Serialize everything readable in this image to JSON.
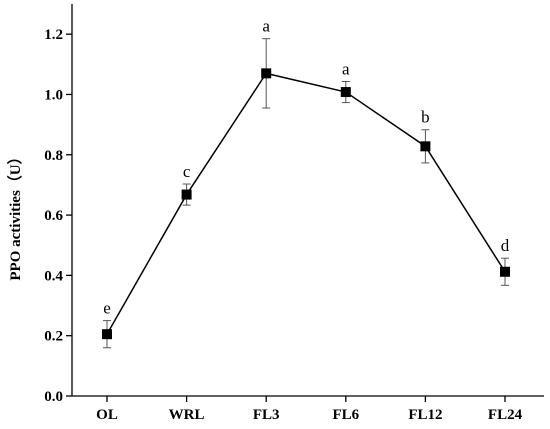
{
  "chart_data": {
    "type": "line",
    "categories": [
      "OL",
      "WRL",
      "FL3",
      "FL6",
      "FL12",
      "FL24"
    ],
    "series": [
      {
        "values": [
          0.205,
          0.668,
          1.07,
          1.008,
          0.828,
          0.412
        ],
        "errors": [
          0.045,
          0.035,
          0.115,
          0.035,
          0.055,
          0.045
        ],
        "labels": [
          "e",
          "c",
          "a",
          "a",
          "b",
          "d"
        ],
        "color": "#000000",
        "marker": "square"
      }
    ],
    "ylabel": "PPO activities（U）",
    "xlabel": "",
    "ylim": [
      0,
      1.3
    ],
    "yticks": [
      "0.0",
      "0.2",
      "0.4",
      "0.6",
      "0.8",
      "1.0",
      "1.2"
    ],
    "grid": false
  }
}
